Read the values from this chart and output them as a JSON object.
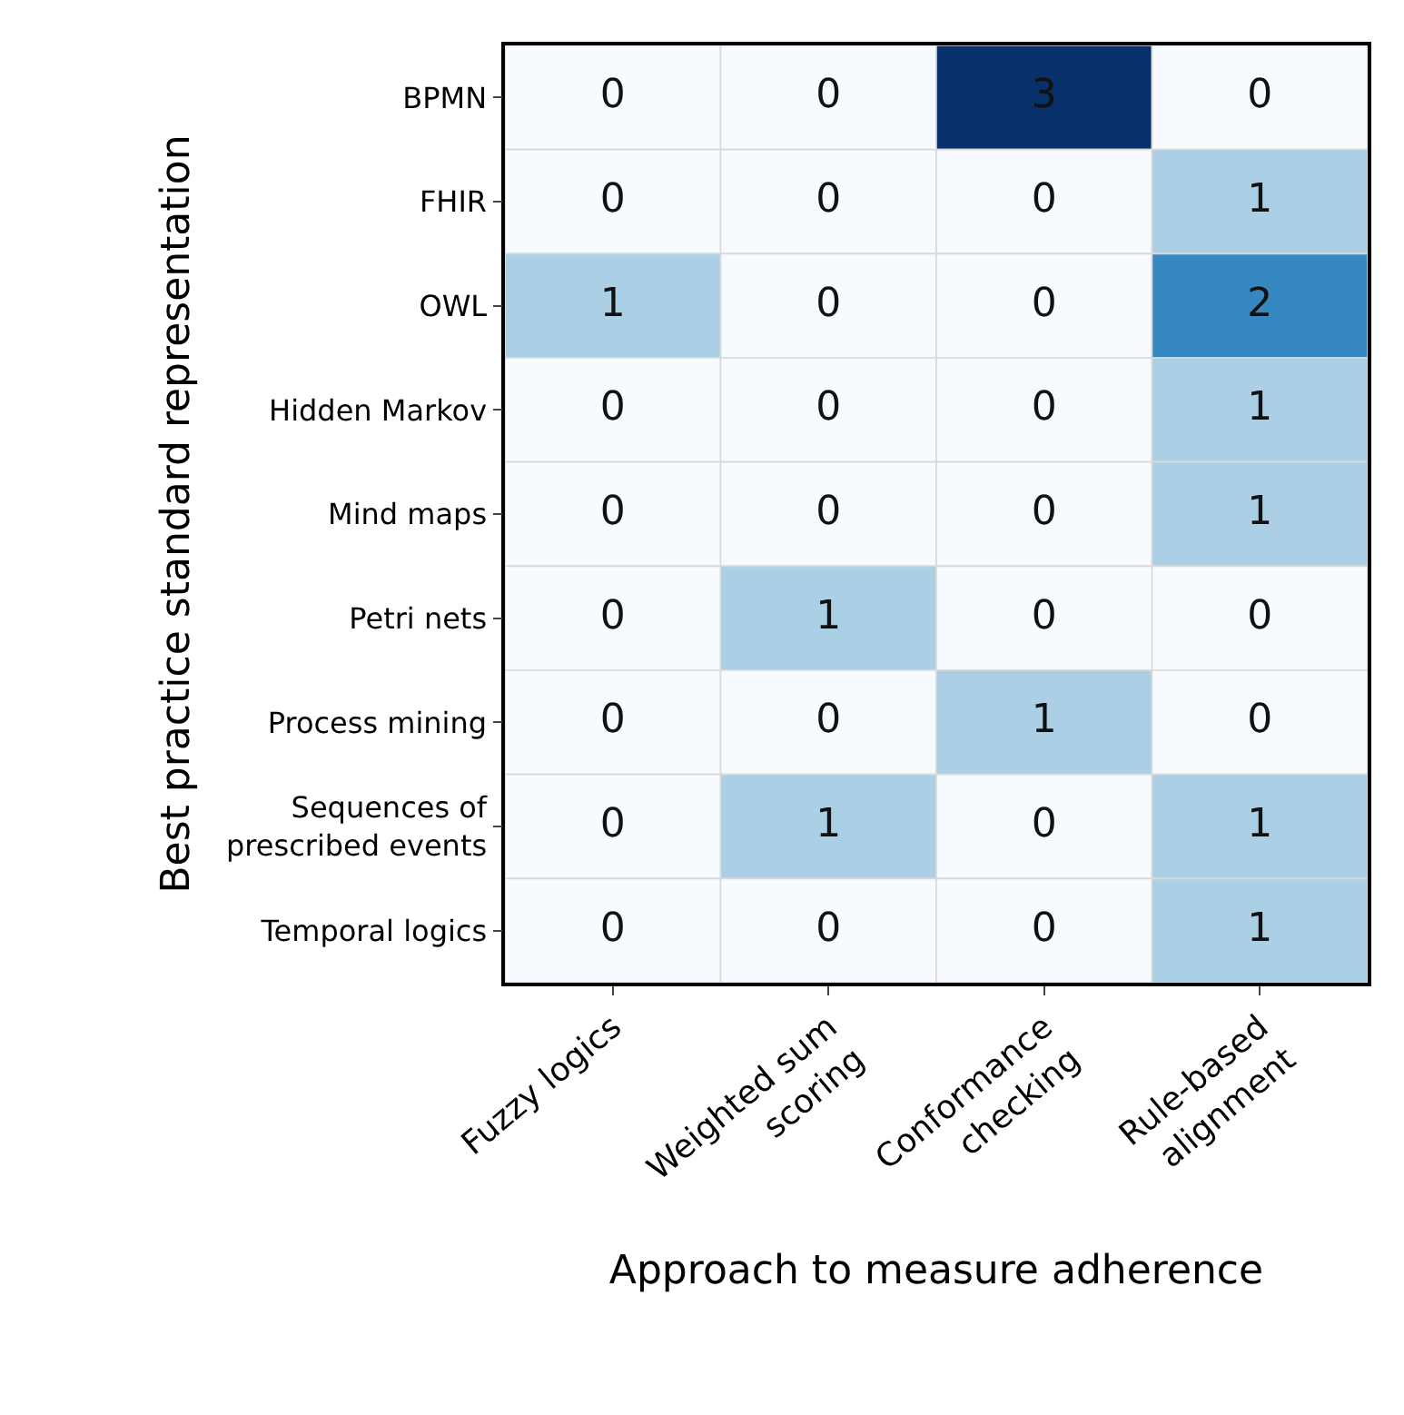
{
  "chart_data": {
    "type": "heatmap",
    "xlabel": "Approach to measure adherence",
    "ylabel": "Best practice standard representation",
    "categories": [
      "Fuzzy logics",
      "Weighted sum\nscoring",
      "Conformance\nchecking",
      "Rule-based\nalignment"
    ],
    "y_categories": [
      "BPMN",
      "FHIR",
      "OWL",
      "Hidden Markov",
      "Mind maps",
      "Petri nets",
      "Process mining",
      "Sequences of\nprescribed events",
      "Temporal logics"
    ],
    "cells": [
      [
        0,
        0,
        3,
        0
      ],
      [
        0,
        0,
        0,
        1
      ],
      [
        1,
        0,
        0,
        2
      ],
      [
        0,
        0,
        0,
        1
      ],
      [
        0,
        0,
        0,
        1
      ],
      [
        0,
        1,
        0,
        0
      ],
      [
        0,
        0,
        1,
        0
      ],
      [
        0,
        1,
        0,
        1
      ],
      [
        0,
        0,
        0,
        1
      ]
    ],
    "data_labels": true
  }
}
